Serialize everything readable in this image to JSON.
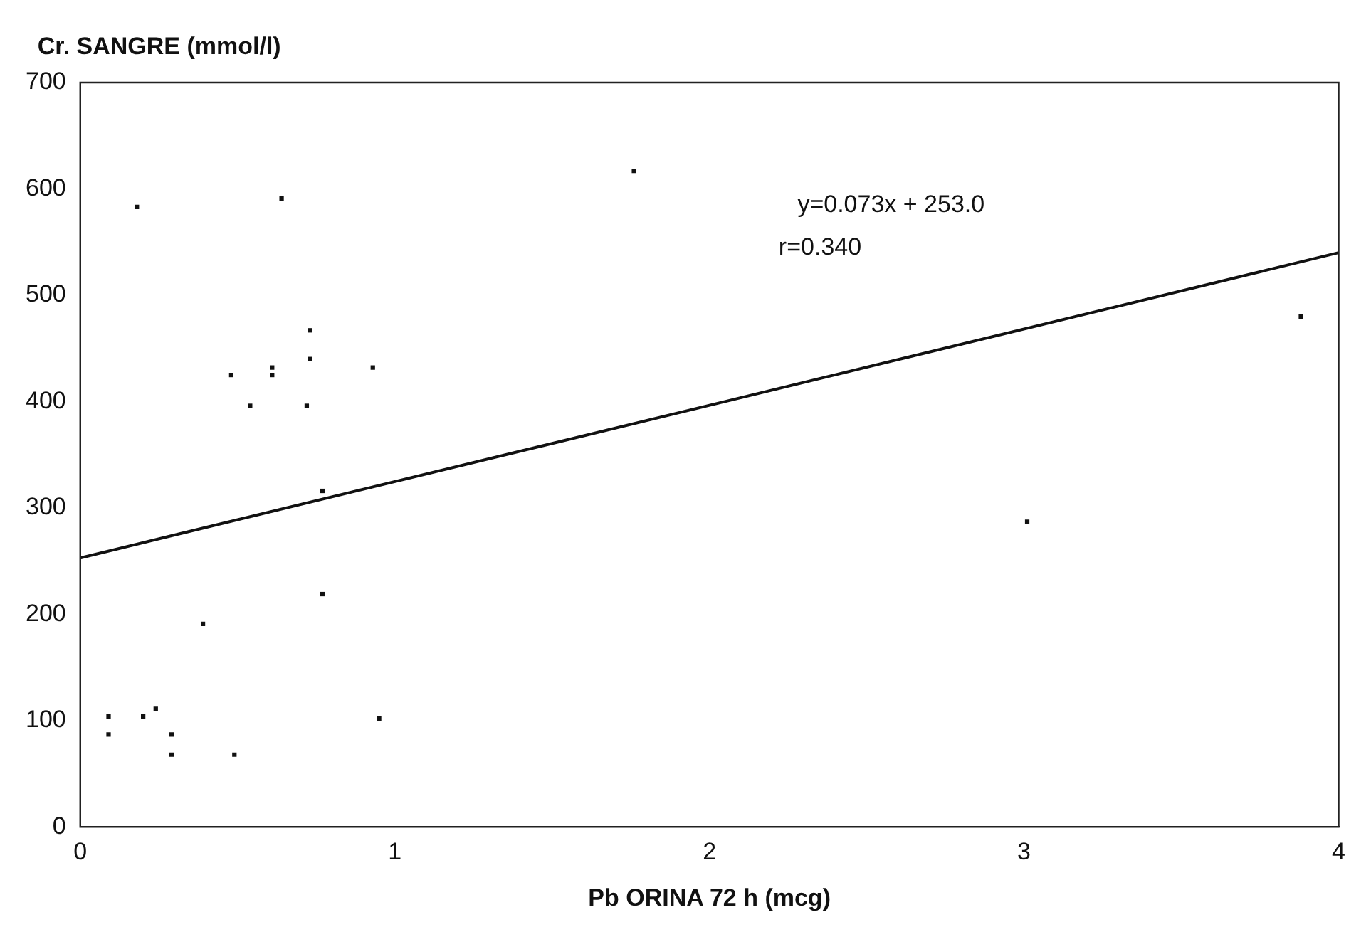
{
  "chart_data": {
    "type": "scatter",
    "xlabel": "Pb ORINA 72 h (mcg)",
    "ylabel": "Cr. SANGRE (mmol/l)",
    "xlim": [
      0,
      4
    ],
    "xticks": [
      0,
      1,
      2,
      3,
      4
    ],
    "ylim": [
      0,
      700
    ],
    "yticks": [
      0,
      100,
      200,
      300,
      400,
      500,
      600,
      700
    ],
    "grid": false,
    "legend": false,
    "marker": "square",
    "series": [
      {
        "color": "#111111",
        "x": [
          0.18,
          0.09,
          0.09,
          0.2,
          0.24,
          0.29,
          0.29,
          0.39,
          0.48,
          0.49,
          0.54,
          0.61,
          0.61,
          0.64,
          0.72,
          0.73,
          0.73,
          0.77,
          0.77,
          0.93,
          0.95,
          1.76,
          3.01,
          3.88
        ],
        "values": [
          583,
          104,
          87,
          104,
          111,
          87,
          68,
          191,
          425,
          68,
          396,
          432,
          425,
          591,
          396,
          440,
          467,
          316,
          219,
          432,
          102,
          617,
          287,
          480
        ]
      },
      {
        "type": "line",
        "color": "#111111",
        "line_style": "solid",
        "marker": "none",
        "x": [
          0,
          4
        ],
        "values": [
          253,
          540
        ]
      }
    ],
    "annotations": [
      "y=0.073x + 253.0",
      "r=0.340"
    ]
  }
}
